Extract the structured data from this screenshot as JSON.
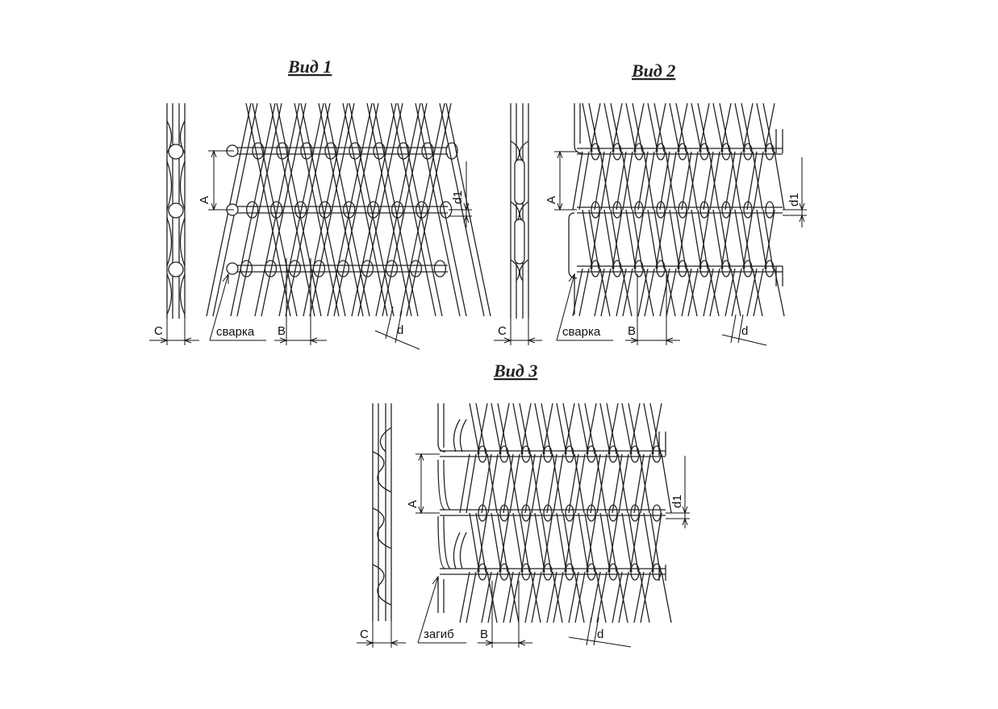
{
  "views": [
    {
      "id": "view1",
      "title": "Вид 1",
      "labels": {
        "a": "A",
        "b": "B",
        "c": "C",
        "d": "d",
        "d1": "d1",
        "note": "сварка"
      }
    },
    {
      "id": "view2",
      "title": "Вид 2",
      "labels": {
        "a": "A",
        "b": "B",
        "c": "C",
        "d": "d",
        "d1": "d1",
        "note": "сварка"
      }
    },
    {
      "id": "view3",
      "title": "Вид 3",
      "labels": {
        "a": "A",
        "b": "B",
        "c": "C",
        "d": "d",
        "d1": "d1",
        "note": "загиб"
      }
    }
  ],
  "colors": {
    "line": "#222222",
    "background": "#ffffff"
  }
}
